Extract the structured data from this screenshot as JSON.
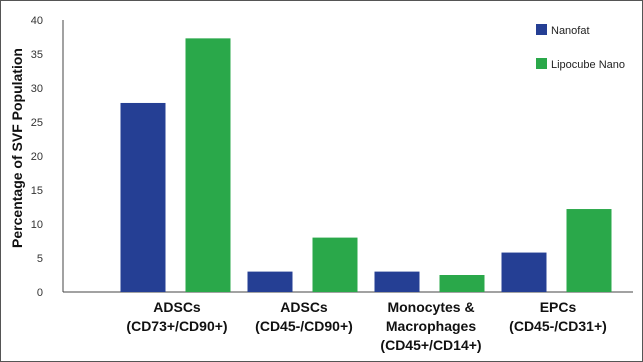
{
  "chart_data": {
    "type": "bar",
    "ylabel": "Percentage of SVF Population",
    "xlabel": "",
    "title": "",
    "ylim": [
      0,
      40
    ],
    "yticks": [
      0,
      5,
      10,
      15,
      20,
      25,
      30,
      35,
      40
    ],
    "grid": false,
    "legend_position": "top-right",
    "categories": [
      [
        "ADSCs",
        "(CD73+/CD90+)"
      ],
      [
        "ADSCs",
        "(CD45-/CD90+)"
      ],
      [
        "Monocytes &",
        "Macrophages",
        "(CD45+/CD14+)"
      ],
      [
        "EPCs",
        "(CD45-/CD31+)"
      ]
    ],
    "series": [
      {
        "name": "Nanofat",
        "color": "#253f94",
        "values": [
          27.8,
          3.0,
          3.0,
          5.8
        ]
      },
      {
        "name": "Lipocube Nano",
        "color": "#2aa84a",
        "values": [
          37.3,
          8.0,
          2.5,
          12.2
        ]
      }
    ]
  }
}
